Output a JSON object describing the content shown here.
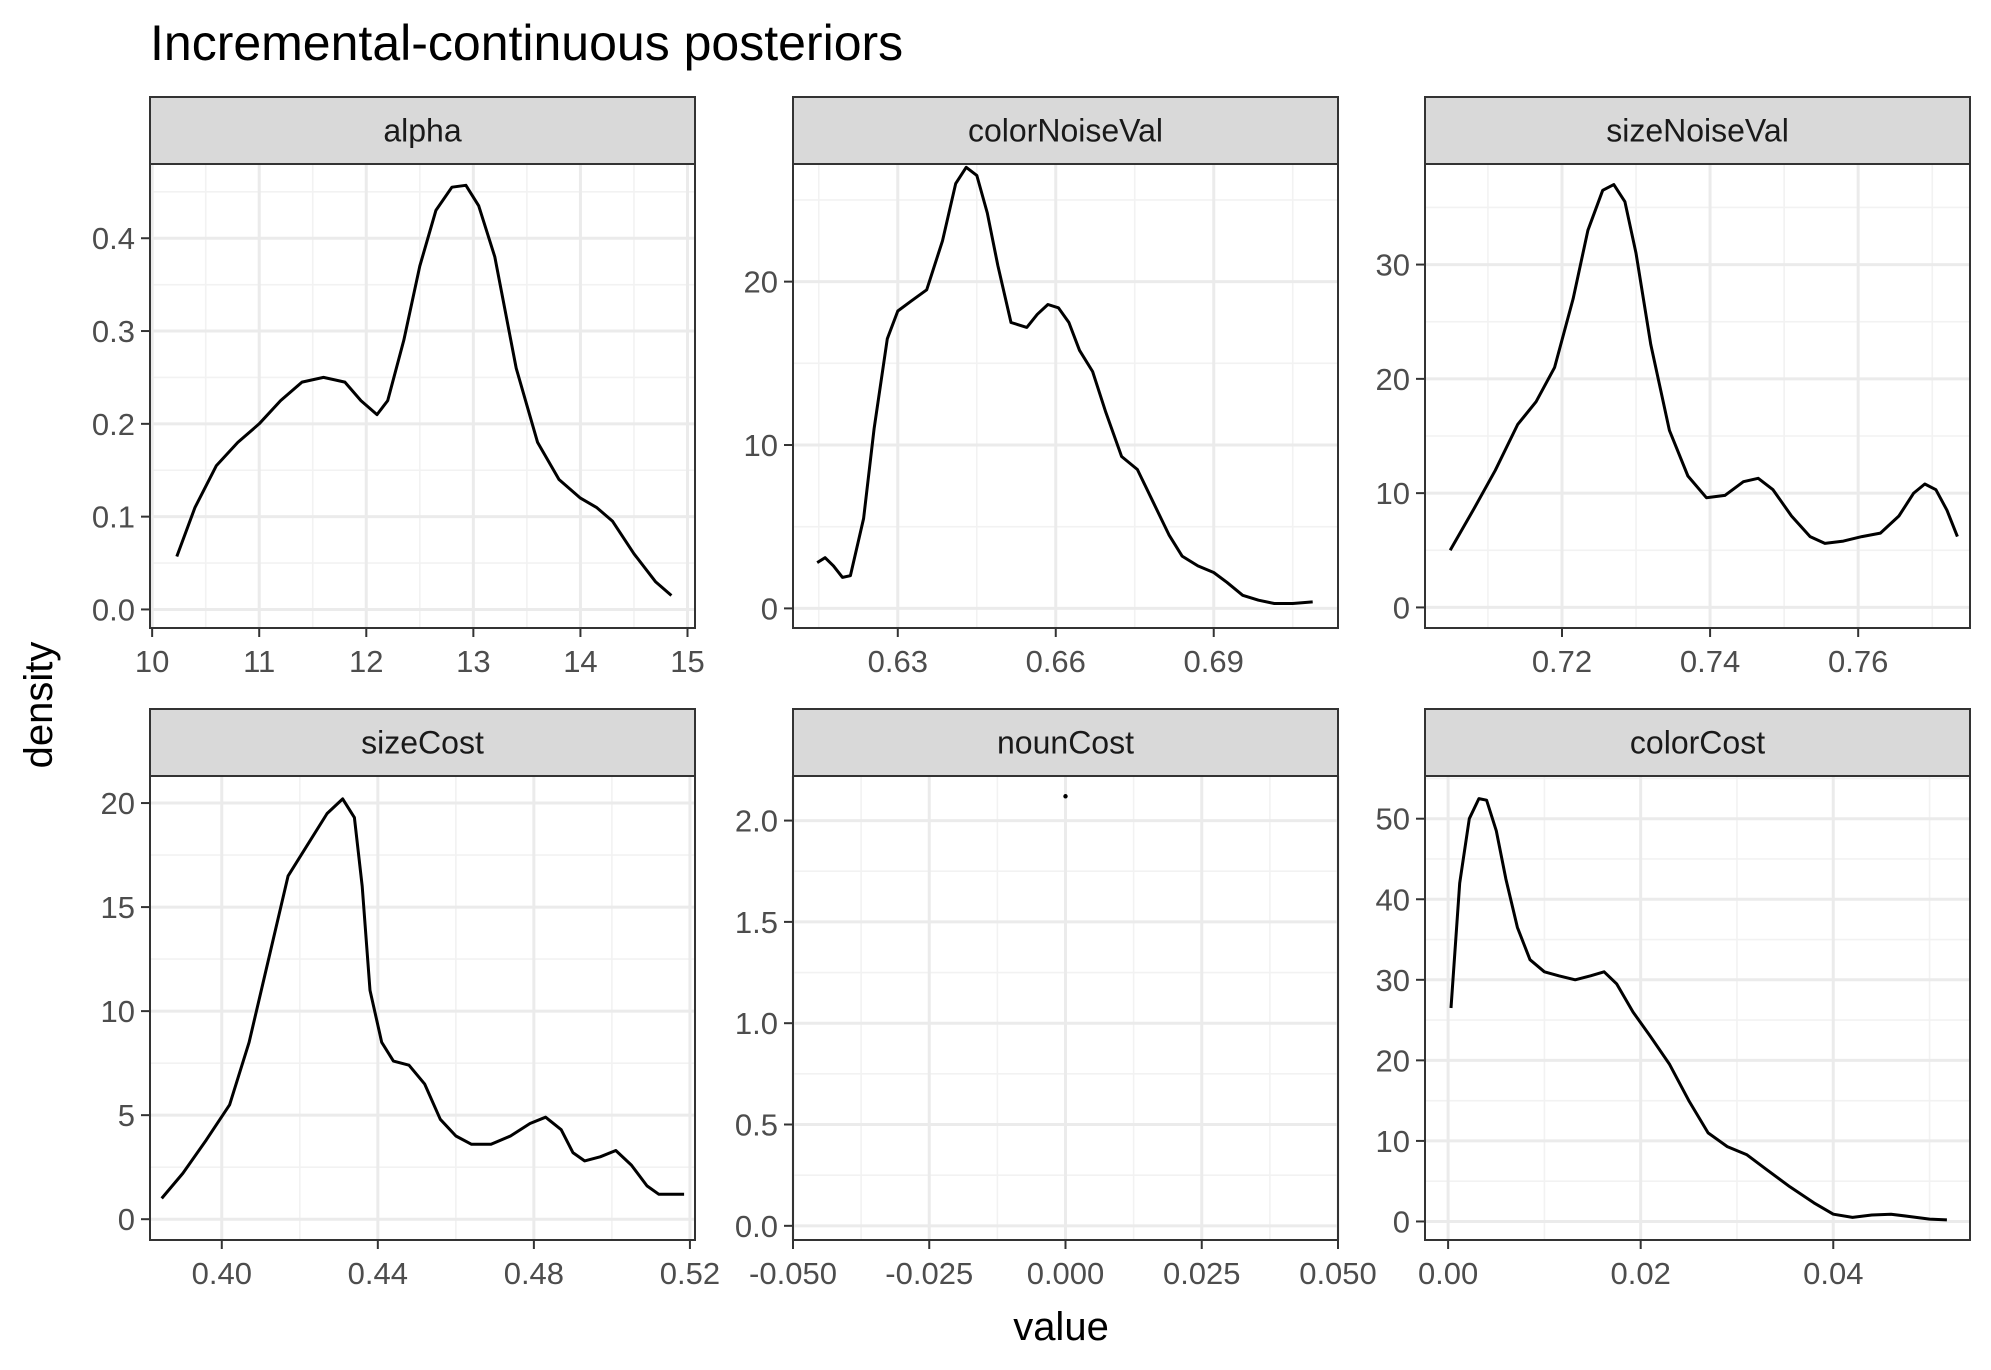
{
  "title": "Incremental-continuous posteriors",
  "xlabel": "value",
  "ylabel": "density",
  "colors": {
    "strip_fill": "#d9d9d9",
    "strip_border": "#333333",
    "grid_major": "#ebebeb",
    "grid_minor": "#f2f2f2",
    "curve": "#000000",
    "text": "#4d4d4d",
    "title": "#000000"
  },
  "chart_data": [
    {
      "type": "line",
      "facet": "alpha",
      "xlim": [
        9.98,
        15.07
      ],
      "ylim": [
        -0.02,
        0.48
      ],
      "x_ticks": [
        10,
        11,
        12,
        13,
        14,
        15
      ],
      "x_tick_labels": [
        "10",
        "11",
        "12",
        "13",
        "14",
        "15"
      ],
      "y_ticks": [
        0.0,
        0.1,
        0.2,
        0.3,
        0.4
      ],
      "y_tick_labels": [
        "0.0",
        "0.1",
        "0.2",
        "0.3",
        "0.4"
      ],
      "x": [
        10.23,
        10.4,
        10.6,
        10.8,
        11.0,
        11.2,
        11.4,
        11.6,
        11.8,
        11.95,
        12.1,
        12.2,
        12.35,
        12.5,
        12.65,
        12.8,
        12.93,
        13.05,
        13.2,
        13.4,
        13.6,
        13.8,
        14.0,
        14.15,
        14.3,
        14.5,
        14.7,
        14.85
      ],
      "y": [
        0.057,
        0.11,
        0.155,
        0.18,
        0.2,
        0.225,
        0.245,
        0.25,
        0.245,
        0.225,
        0.21,
        0.225,
        0.29,
        0.37,
        0.43,
        0.455,
        0.457,
        0.435,
        0.38,
        0.26,
        0.18,
        0.14,
        0.12,
        0.11,
        0.095,
        0.06,
        0.03,
        0.015
      ],
      "grid": true
    },
    {
      "type": "line",
      "facet": "colorNoiseVal",
      "xlim": [
        0.6101,
        0.7136
      ],
      "ylim": [
        -1.2,
        27.2
      ],
      "x_ticks": [
        0.63,
        0.66,
        0.69
      ],
      "x_tick_labels": [
        "0.63",
        "0.66",
        "0.69"
      ],
      "y_ticks": [
        0,
        10,
        20
      ],
      "y_tick_labels": [
        "0",
        "10",
        "20"
      ],
      "x": [
        0.6147,
        0.6162,
        0.6178,
        0.6195,
        0.621,
        0.6235,
        0.6255,
        0.628,
        0.63,
        0.6325,
        0.6355,
        0.6385,
        0.641,
        0.643,
        0.645,
        0.647,
        0.649,
        0.6515,
        0.6545,
        0.6565,
        0.6585,
        0.6605,
        0.6625,
        0.6645,
        0.667,
        0.6695,
        0.6725,
        0.6755,
        0.6785,
        0.6815,
        0.684,
        0.687,
        0.69,
        0.6925,
        0.6955,
        0.6985,
        0.7015,
        0.705,
        0.7088
      ],
      "y": [
        2.8,
        3.1,
        2.6,
        1.9,
        2.0,
        5.5,
        11.0,
        16.5,
        18.2,
        18.8,
        19.5,
        22.5,
        26.0,
        27.0,
        26.5,
        24.2,
        21.0,
        17.5,
        17.2,
        18.0,
        18.6,
        18.4,
        17.5,
        15.8,
        14.5,
        12.0,
        9.3,
        8.5,
        6.5,
        4.5,
        3.2,
        2.6,
        2.2,
        1.6,
        0.8,
        0.5,
        0.3,
        0.3,
        0.4
      ],
      "grid": true
    },
    {
      "type": "line",
      "facet": "sizeNoiseVal",
      "xlim": [
        0.7015,
        0.7751
      ],
      "ylim": [
        -1.8,
        38.8
      ],
      "x_ticks": [
        0.72,
        0.74,
        0.76
      ],
      "x_tick_labels": [
        "0.72",
        "0.74",
        "0.76"
      ],
      "y_ticks": [
        0,
        10,
        20,
        30
      ],
      "y_tick_labels": [
        "0",
        "10",
        "20",
        "30"
      ],
      "x": [
        0.7049,
        0.708,
        0.711,
        0.714,
        0.7165,
        0.719,
        0.7215,
        0.7235,
        0.7255,
        0.727,
        0.7285,
        0.73,
        0.732,
        0.7345,
        0.737,
        0.7395,
        0.742,
        0.7445,
        0.7465,
        0.7485,
        0.751,
        0.7535,
        0.7555,
        0.758,
        0.7605,
        0.763,
        0.7655,
        0.7675,
        0.769,
        0.7705,
        0.772,
        0.7734
      ],
      "y": [
        5.0,
        8.5,
        12.0,
        16.0,
        18.0,
        21.0,
        27.0,
        33.0,
        36.5,
        37.0,
        35.5,
        31.0,
        23.0,
        15.5,
        11.5,
        9.6,
        9.8,
        11.0,
        11.3,
        10.3,
        8.0,
        6.2,
        5.6,
        5.8,
        6.2,
        6.5,
        8.0,
        10.0,
        10.8,
        10.3,
        8.5,
        6.2
      ],
      "grid": true
    },
    {
      "type": "line",
      "facet": "sizeCost",
      "xlim": [
        0.3816,
        0.5213
      ],
      "ylim": [
        -1.0,
        21.3
      ],
      "x_ticks": [
        0.4,
        0.44,
        0.48,
        0.52
      ],
      "x_tick_labels": [
        "0.40",
        "0.44",
        "0.48",
        "0.52"
      ],
      "y_ticks": [
        0,
        5,
        10,
        15,
        20
      ],
      "y_tick_labels": [
        "0",
        "5",
        "10",
        "15",
        "20"
      ],
      "x": [
        0.3846,
        0.39,
        0.396,
        0.402,
        0.407,
        0.412,
        0.417,
        0.422,
        0.427,
        0.431,
        0.434,
        0.436,
        0.438,
        0.441,
        0.444,
        0.448,
        0.452,
        0.456,
        0.46,
        0.464,
        0.469,
        0.474,
        0.479,
        0.483,
        0.487,
        0.49,
        0.493,
        0.497,
        0.501,
        0.505,
        0.509,
        0.512,
        0.5155,
        0.5185
      ],
      "y": [
        1.0,
        2.2,
        3.8,
        5.5,
        8.5,
        12.5,
        16.5,
        18.0,
        19.5,
        20.2,
        19.3,
        16.0,
        11.0,
        8.5,
        7.6,
        7.4,
        6.5,
        4.8,
        4.0,
        3.6,
        3.6,
        4.0,
        4.6,
        4.9,
        4.3,
        3.2,
        2.8,
        3.0,
        3.3,
        2.6,
        1.6,
        1.2,
        1.2,
        1.2
      ],
      "grid": true
    },
    {
      "type": "scatter",
      "facet": "nounCost",
      "xlim": [
        -0.05,
        0.05
      ],
      "ylim": [
        -0.07,
        2.22
      ],
      "x_ticks": [
        -0.05,
        -0.025,
        0.0,
        0.025,
        0.05
      ],
      "x_tick_labels": [
        "-0.050",
        "-0.025",
        "0.000",
        "0.025",
        "0.050"
      ],
      "y_ticks": [
        0.0,
        0.5,
        1.0,
        1.5,
        2.0
      ],
      "y_tick_labels": [
        "0.0",
        "0.5",
        "1.0",
        "1.5",
        "2.0"
      ],
      "x": [
        0.0
      ],
      "y": [
        2.12
      ],
      "grid": true
    },
    {
      "type": "line",
      "facet": "colorCost",
      "xlim": [
        -0.0024,
        0.0542
      ],
      "ylim": [
        -2.3,
        55.3
      ],
      "x_ticks": [
        0.0,
        0.02,
        0.04
      ],
      "x_tick_labels": [
        "0.00",
        "0.02",
        "0.04"
      ],
      "y_ticks": [
        0,
        10,
        20,
        30,
        40,
        50
      ],
      "y_tick_labels": [
        "0",
        "10",
        "20",
        "30",
        "40",
        "50"
      ],
      "x": [
        0.0003,
        0.0012,
        0.0022,
        0.0032,
        0.004,
        0.005,
        0.006,
        0.0072,
        0.0085,
        0.01,
        0.0115,
        0.0132,
        0.0148,
        0.0162,
        0.0175,
        0.0192,
        0.021,
        0.023,
        0.025,
        0.027,
        0.029,
        0.031,
        0.033,
        0.0355,
        0.038,
        0.04,
        0.042,
        0.044,
        0.046,
        0.048,
        0.05,
        0.0518
      ],
      "y": [
        26.5,
        42.0,
        50.0,
        52.5,
        52.3,
        48.5,
        42.5,
        36.5,
        32.5,
        31.0,
        30.5,
        30.0,
        30.5,
        31.0,
        29.5,
        26.0,
        23.0,
        19.5,
        15.0,
        11.0,
        9.3,
        8.3,
        6.5,
        4.3,
        2.3,
        0.9,
        0.5,
        0.8,
        0.9,
        0.6,
        0.3,
        0.2
      ],
      "grid": true
    }
  ]
}
